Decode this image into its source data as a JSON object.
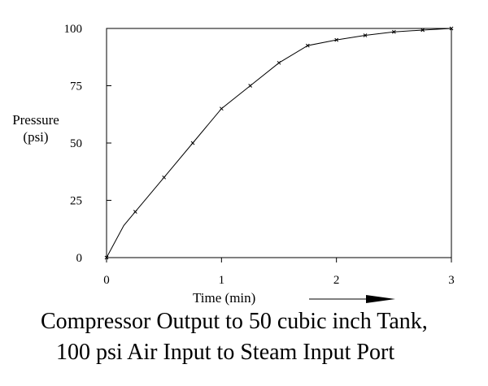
{
  "chart_data": {
    "type": "line",
    "title_lines": [
      "Compressor Output to 50 cubic inch Tank,",
      "100 psi Air Input to Steam Input Port"
    ],
    "xlabel": "Time (min)",
    "ylabel_lines": [
      "Pressure",
      "(psi)"
    ],
    "xlim": [
      0,
      3
    ],
    "ylim": [
      0,
      100
    ],
    "x_ticks": [
      "0",
      "1",
      "2",
      "3"
    ],
    "y_ticks": [
      "0",
      "25",
      "50",
      "75",
      "100"
    ],
    "grid": false,
    "series": [
      {
        "x": [
          0,
          0.15,
          0.25,
          0.5,
          0.75,
          1.0,
          1.25,
          1.5,
          1.75,
          2.0,
          2.25,
          2.5,
          2.75,
          3.0
        ],
        "y": [
          0,
          14,
          20,
          35,
          50,
          65,
          75,
          85,
          92.5,
          95,
          97,
          98.5,
          99.3,
          100
        ]
      }
    ],
    "marker_x": [
      0,
      0.25,
      0.5,
      0.75,
      1.0,
      1.25,
      1.5,
      1.75,
      2.0,
      2.25,
      2.5,
      2.75,
      3.0
    ]
  }
}
